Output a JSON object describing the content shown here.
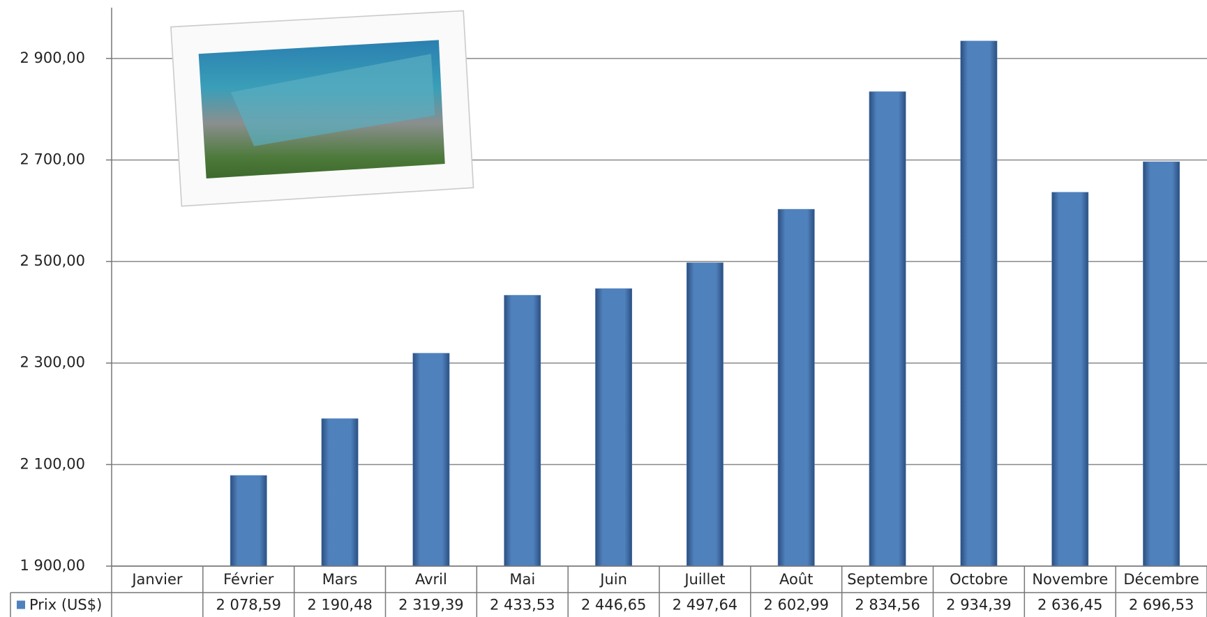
{
  "chart_data": {
    "type": "bar",
    "categories": [
      "Janvier",
      "Février",
      "Mars",
      "Avril",
      "Mai",
      "Juin",
      "Juillet",
      "Août",
      "Septembre",
      "Octobre",
      "Novembre",
      "Décembre"
    ],
    "series": [
      {
        "name": "Prix (US$)",
        "color": "#4f81bd",
        "values": [
          null,
          2078.59,
          2190.48,
          2319.39,
          2433.53,
          2446.65,
          2497.64,
          2602.99,
          2834.56,
          2934.39,
          2636.45,
          2696.53
        ],
        "value_labels": [
          null,
          "2 078,59",
          "2 190,48",
          "2 319,39",
          "2 433,53",
          "2 446,65",
          "2 497,64",
          "2 602,99",
          "2 834,56",
          "2 934,39",
          "2 636,45",
          "2 696,53"
        ]
      }
    ],
    "ylim": [
      1900,
      3000
    ],
    "yticks": [
      {
        "value": 1900,
        "label": "1 900,00"
      },
      {
        "value": 2100,
        "label": "2 100,00"
      },
      {
        "value": 2300,
        "label": "2 300,00"
      },
      {
        "value": 2500,
        "label": "2 500,00"
      },
      {
        "value": 2700,
        "label": "2 700,00"
      },
      {
        "value": 2900,
        "label": "2 900,00"
      }
    ],
    "grid": true
  }
}
